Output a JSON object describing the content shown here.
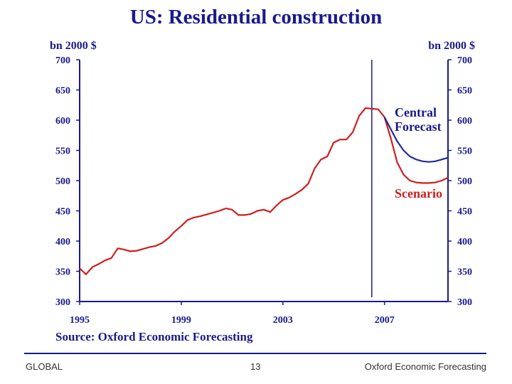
{
  "title": "US: Residential construction",
  "footer": {
    "left": "GLOBAL",
    "page": "13",
    "right": "Oxford Economic Forecasting"
  },
  "colors": {
    "axis": "#1a1a8c",
    "central": "#1f2a9c",
    "scenario": "#cc1f1f",
    "text": "#1a1a8c"
  },
  "chart_data": {
    "type": "line",
    "title": "US: Residential construction",
    "ylabel_left": "bn 2000 $",
    "ylabel_right": "bn 2000 $",
    "source": "Source: Oxford Economic Forecasting",
    "ylim": [
      300,
      700
    ],
    "y_ticks": [
      300,
      350,
      400,
      450,
      500,
      550,
      600,
      650,
      700
    ],
    "xlim": [
      1995,
      2009.5
    ],
    "x_ticks": [
      1995,
      1999,
      2003,
      2007
    ],
    "forecast_line_x": 2006.5,
    "grid": false,
    "series": [
      {
        "name": "Scenario",
        "color": "#cc1f1f",
        "points": [
          [
            1995.0,
            355
          ],
          [
            1995.25,
            345
          ],
          [
            1995.5,
            357
          ],
          [
            1995.75,
            362
          ],
          [
            1996.0,
            368
          ],
          [
            1996.25,
            372
          ],
          [
            1996.5,
            388
          ],
          [
            1996.75,
            386
          ],
          [
            1997.0,
            383
          ],
          [
            1997.25,
            384
          ],
          [
            1997.5,
            387
          ],
          [
            1997.75,
            390
          ],
          [
            1998.0,
            392
          ],
          [
            1998.25,
            397
          ],
          [
            1998.5,
            405
          ],
          [
            1998.75,
            416
          ],
          [
            1999.0,
            425
          ],
          [
            1999.25,
            435
          ],
          [
            1999.5,
            439
          ],
          [
            1999.75,
            441
          ],
          [
            2000.0,
            444
          ],
          [
            2000.25,
            447
          ],
          [
            2000.5,
            450
          ],
          [
            2000.75,
            454
          ],
          [
            2001.0,
            452
          ],
          [
            2001.25,
            443
          ],
          [
            2001.5,
            443
          ],
          [
            2001.75,
            445
          ],
          [
            2002.0,
            450
          ],
          [
            2002.25,
            452
          ],
          [
            2002.5,
            448
          ],
          [
            2002.75,
            459
          ],
          [
            2003.0,
            468
          ],
          [
            2003.25,
            472
          ],
          [
            2003.5,
            478
          ],
          [
            2003.75,
            485
          ],
          [
            2004.0,
            495
          ],
          [
            2004.25,
            520
          ],
          [
            2004.5,
            535
          ],
          [
            2004.75,
            540
          ],
          [
            2005.0,
            563
          ],
          [
            2005.25,
            568
          ],
          [
            2005.5,
            568
          ],
          [
            2005.75,
            580
          ],
          [
            2006.0,
            607
          ],
          [
            2006.25,
            620
          ],
          [
            2006.5,
            619
          ],
          [
            2006.75,
            618
          ],
          [
            2007.0,
            605
          ],
          [
            2007.25,
            570
          ],
          [
            2007.5,
            530
          ],
          [
            2007.75,
            510
          ],
          [
            2008.0,
            500
          ],
          [
            2008.25,
            497
          ],
          [
            2008.5,
            496
          ],
          [
            2008.75,
            496
          ],
          [
            2009.0,
            497
          ],
          [
            2009.25,
            500
          ],
          [
            2009.5,
            505
          ]
        ]
      },
      {
        "name": "Central Forecast",
        "color": "#1f2a9c",
        "points": [
          [
            2007.0,
            605
          ],
          [
            2007.25,
            585
          ],
          [
            2007.5,
            565
          ],
          [
            2007.75,
            550
          ],
          [
            2008.0,
            540
          ],
          [
            2008.25,
            535
          ],
          [
            2008.5,
            532
          ],
          [
            2008.75,
            531
          ],
          [
            2009.0,
            532
          ],
          [
            2009.25,
            535
          ],
          [
            2009.5,
            538
          ]
        ]
      }
    ],
    "annotations": [
      {
        "text_lines": [
          "Central",
          "Forecast"
        ],
        "color": "#1a1a8c"
      },
      {
        "text_lines": [
          "Scenario"
        ],
        "color": "#cc1f1f"
      }
    ]
  }
}
